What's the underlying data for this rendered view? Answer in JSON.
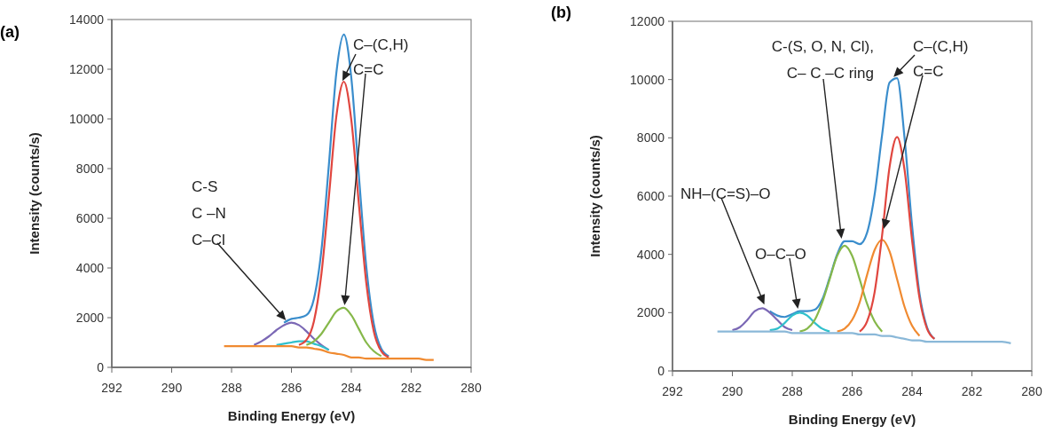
{
  "chart_data": [
    {
      "type": "line",
      "title": "(a)",
      "xlabel": "Binding Energy (eV)",
      "ylabel": "Intensity (counts/s)",
      "xlim": [
        292,
        280
      ],
      "xticks": [
        292,
        290,
        288,
        286,
        284,
        282,
        280
      ],
      "ylim": [
        0,
        14000
      ],
      "yticks": [
        0,
        2000,
        4000,
        6000,
        8000,
        10000,
        12000,
        14000
      ],
      "grid": false,
      "marker": "none",
      "line_style": "solid",
      "x": [
        288.25,
        288,
        287.75,
        287.5,
        287.25,
        287,
        286.75,
        286.5,
        286.25,
        286,
        285.75,
        285.5,
        285.25,
        285,
        284.75,
        284.5,
        284.25,
        284,
        283.75,
        283.5,
        283.25,
        283,
        282.75,
        282.5,
        282.25,
        282,
        281.75,
        281.5,
        281.25
      ],
      "series": [
        {
          "color": "#3a8dcc",
          "values": [
            null,
            null,
            null,
            null,
            null,
            null,
            null,
            null,
            1800,
            1950,
            2000,
            2100,
            2750,
            4700,
            8150,
            11850,
            13400,
            11650,
            7750,
            4050,
            1750,
            750,
            450,
            null,
            null,
            null,
            null,
            null,
            null
          ]
        },
        {
          "color": "#7b68b5",
          "values": [
            null,
            null,
            null,
            null,
            900,
            1050,
            1250,
            1500,
            1700,
            1800,
            1700,
            1450,
            1150,
            900,
            700,
            null,
            null,
            null,
            null,
            null,
            null,
            null,
            null,
            null,
            null,
            null,
            null,
            null,
            null
          ]
        },
        {
          "color": "#30c0cc",
          "values": [
            null,
            null,
            null,
            null,
            null,
            null,
            null,
            900,
            950,
            1000,
            1050,
            1050,
            950,
            850,
            700,
            null,
            null,
            null,
            null,
            null,
            null,
            null,
            null,
            null,
            null,
            null,
            null,
            null,
            null
          ]
        },
        {
          "color": "#86b84a",
          "values": [
            null,
            null,
            null,
            null,
            null,
            null,
            null,
            null,
            null,
            null,
            null,
            900,
            1050,
            1350,
            1800,
            2250,
            2400,
            2100,
            1550,
            1000,
            650,
            450,
            null,
            null,
            null,
            null,
            null,
            null,
            null
          ]
        },
        {
          "color": "#e0463f",
          "values": [
            null,
            null,
            null,
            null,
            null,
            null,
            null,
            null,
            null,
            null,
            900,
            1100,
            1850,
            3750,
            6850,
            10100,
            11500,
            9950,
            6600,
            3400,
            1450,
            650,
            400,
            null,
            null,
            null,
            null,
            null,
            null
          ]
        },
        {
          "color": "#f08a30",
          "values": [
            850,
            850,
            850,
            850,
            850,
            850,
            850,
            850,
            850,
            850,
            800,
            800,
            750,
            700,
            600,
            550,
            500,
            400,
            400,
            350,
            350,
            350,
            350,
            350,
            350,
            350,
            350,
            300,
            300
          ]
        }
      ],
      "annotations": [
        "C-S\nC –N\nC–Cl",
        {
          "text": "C–(C,H)",
          "x": 284.35,
          "y": 11400
        },
        "C=C"
      ]
    },
    {
      "type": "line",
      "title": "(b)",
      "xlabel": "Binding Energy (eV)",
      "ylabel": "Intensity (counts/s)",
      "xlim": [
        292,
        280
      ],
      "xticks": [
        292,
        290,
        288,
        286,
        284,
        282,
        280
      ],
      "ylim": [
        0,
        12000
      ],
      "yticks": [
        0,
        2000,
        4000,
        6000,
        8000,
        10000,
        12000
      ],
      "grid": false,
      "marker": "none",
      "line_style": "solid",
      "x": [
        290.5,
        290.25,
        290,
        289.75,
        289.5,
        289.25,
        289,
        288.75,
        288.5,
        288.25,
        288,
        287.75,
        287.5,
        287.25,
        287,
        286.75,
        286.5,
        286.25,
        286,
        285.75,
        285.5,
        285.25,
        285,
        284.75,
        284.5,
        284.25,
        284,
        283.75,
        283.5,
        283.25,
        283,
        282.5,
        282,
        281.5,
        281,
        280.7
      ],
      "series": [
        {
          "color": "#3a8dcc",
          "values": [
            null,
            null,
            null,
            null,
            null,
            null,
            null,
            2050,
            1900,
            1850,
            1950,
            2050,
            2050,
            2100,
            2450,
            3200,
            4000,
            4450,
            4450,
            4350,
            4750,
            6050,
            8100,
            9900,
            10050,
            8000,
            5000,
            2650,
            1500,
            1100,
            null,
            null,
            null,
            null,
            null,
            null
          ]
        },
        {
          "color": "#7b68b5",
          "values": [
            null,
            null,
            1400,
            1500,
            1750,
            2050,
            2150,
            2000,
            1750,
            1500,
            1400,
            null,
            null,
            null,
            null,
            null,
            null,
            null,
            null,
            null,
            null,
            null,
            null,
            null,
            null,
            null,
            null,
            null,
            null,
            null,
            null,
            null,
            null,
            null,
            null,
            null
          ]
        },
        {
          "color": "#30c0cc",
          "values": [
            null,
            null,
            null,
            null,
            null,
            null,
            null,
            1400,
            1450,
            1650,
            1900,
            2000,
            1900,
            1650,
            1450,
            1350,
            null,
            null,
            null,
            null,
            null,
            null,
            null,
            null,
            null,
            null,
            null,
            null,
            null,
            null,
            null,
            null,
            null,
            null,
            null,
            null
          ]
        },
        {
          "color": "#86b84a",
          "values": [
            null,
            null,
            null,
            null,
            null,
            null,
            null,
            null,
            null,
            null,
            null,
            1350,
            1450,
            1750,
            2350,
            3150,
            3950,
            4300,
            3950,
            3150,
            2300,
            1700,
            1350,
            null,
            null,
            null,
            null,
            null,
            null,
            null,
            null,
            null,
            null,
            null,
            null,
            null
          ]
        },
        {
          "color": "#f08a30",
          "values": [
            null,
            null,
            null,
            null,
            null,
            null,
            null,
            null,
            null,
            null,
            null,
            null,
            null,
            null,
            null,
            null,
            1350,
            1450,
            1750,
            2350,
            3300,
            4150,
            4500,
            4100,
            3150,
            2200,
            1550,
            1200,
            null,
            null,
            null,
            null,
            null,
            null,
            null,
            null
          ]
        },
        {
          "color": "#e0463f",
          "values": [
            null,
            null,
            null,
            null,
            null,
            null,
            null,
            null,
            null,
            null,
            null,
            null,
            null,
            null,
            null,
            null,
            null,
            null,
            null,
            1350,
            1700,
            2700,
            4650,
            7000,
            8030,
            6900,
            4500,
            2500,
            1450,
            1100,
            null,
            null,
            null,
            null,
            null,
            null
          ]
        },
        {
          "color": "#8ab8d8",
          "values": [
            1350,
            1350,
            1350,
            1350,
            1350,
            1350,
            1350,
            1350,
            1350,
            1350,
            1300,
            1300,
            1300,
            1300,
            1300,
            1300,
            1300,
            1300,
            1300,
            1250,
            1250,
            1250,
            1200,
            1200,
            1150,
            1100,
            1050,
            1050,
            1000,
            1000,
            1000,
            1000,
            1000,
            1000,
            1000,
            950
          ]
        }
      ],
      "annotations": [
        "NH–(C=S)–O",
        "O–C–O",
        "C-(S, O, N, Cl),\nC– C –C ring",
        {
          "text": "C–(C,H)",
          "x": 284.7,
          "y": 10000
        },
        "C=C"
      ]
    }
  ]
}
